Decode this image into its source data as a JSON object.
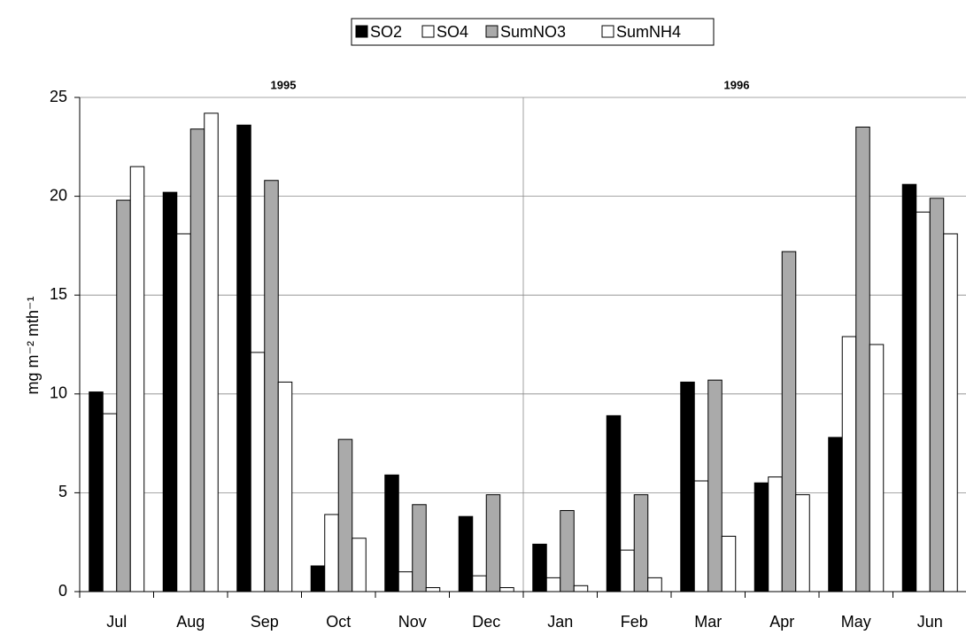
{
  "chart_data": {
    "type": "bar",
    "y_label": "mg m⁻² mth⁻¹",
    "annotations": [
      "1995",
      "1996"
    ],
    "categories": [
      "Jul",
      "Aug",
      "Sep",
      "Oct",
      "Nov",
      "Dec",
      "Jan",
      "Feb",
      "Mar",
      "Apr",
      "May",
      "Jun"
    ],
    "series": [
      {
        "name": "SO2",
        "color": "#000000",
        "values": [
          10.1,
          20.2,
          23.6,
          1.3,
          5.9,
          3.8,
          2.4,
          8.9,
          10.6,
          5.5,
          7.8,
          20.6
        ]
      },
      {
        "name": "SO4",
        "color": "#ffffff",
        "values": [
          9.0,
          18.1,
          12.1,
          3.9,
          1.0,
          0.8,
          0.7,
          2.1,
          5.6,
          5.8,
          12.9,
          19.2
        ]
      },
      {
        "name": "SumNO3",
        "color": "#aaaaaa",
        "values": [
          19.8,
          23.4,
          20.8,
          7.7,
          4.4,
          4.9,
          4.1,
          4.9,
          10.7,
          17.2,
          23.5,
          19.9
        ]
      },
      {
        "name": "SumNH4",
        "color": "#ffffff",
        "values": [
          21.5,
          24.2,
          10.6,
          2.7,
          0.2,
          0.2,
          0.3,
          0.7,
          2.8,
          4.9,
          12.5,
          18.1
        ]
      }
    ],
    "ylim": [
      0,
      25
    ],
    "yticks": [
      0,
      5,
      10,
      15,
      20,
      25
    ],
    "grid": true,
    "legend": "top"
  }
}
